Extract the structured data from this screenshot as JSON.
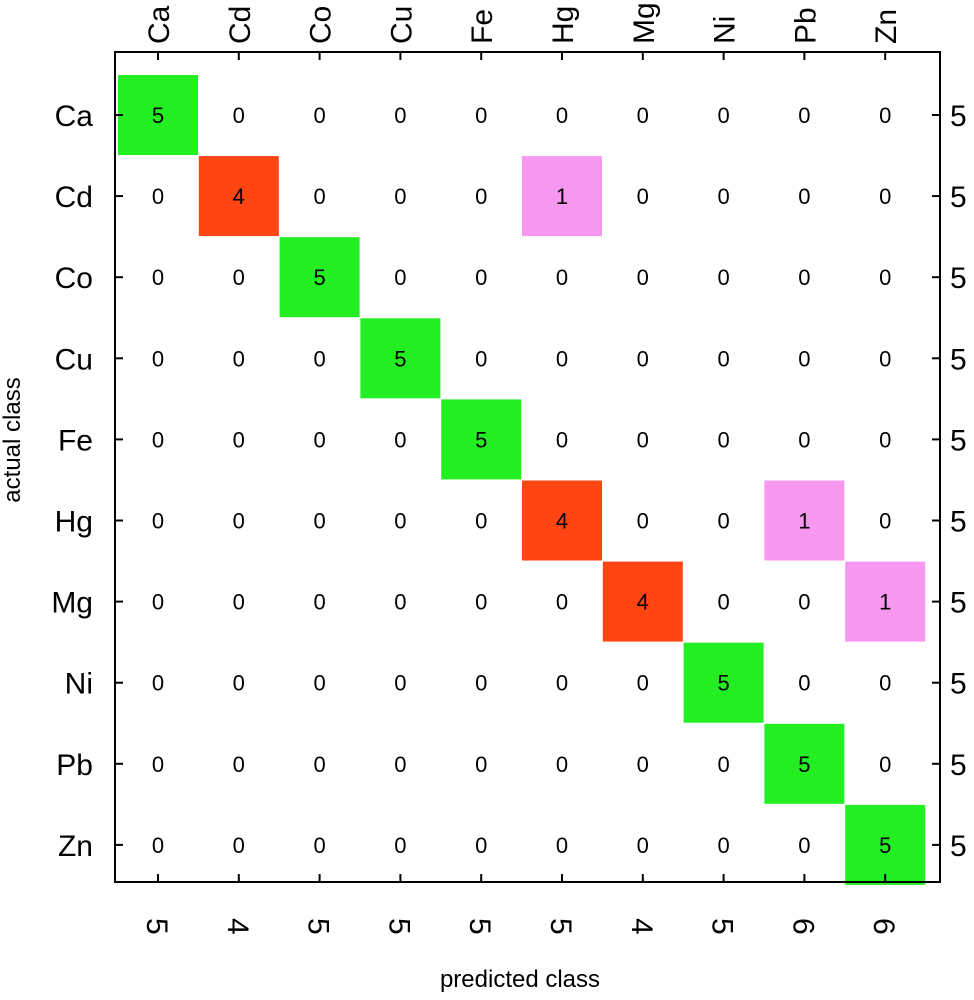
{
  "chart_data": {
    "type": "heatmap",
    "title": "",
    "xlabel": "predicted class",
    "ylabel": "actual class",
    "classes": [
      "Ca",
      "Cd",
      "Co",
      "Cu",
      "Fe",
      "Hg",
      "Mg",
      "Ni",
      "Pb",
      "Zn"
    ],
    "matrix": [
      [
        5,
        0,
        0,
        0,
        0,
        0,
        0,
        0,
        0,
        0
      ],
      [
        0,
        4,
        0,
        0,
        0,
        1,
        0,
        0,
        0,
        0
      ],
      [
        0,
        0,
        5,
        0,
        0,
        0,
        0,
        0,
        0,
        0
      ],
      [
        0,
        0,
        0,
        5,
        0,
        0,
        0,
        0,
        0,
        0
      ],
      [
        0,
        0,
        0,
        0,
        5,
        0,
        0,
        0,
        0,
        0
      ],
      [
        0,
        0,
        0,
        0,
        0,
        4,
        0,
        0,
        1,
        0
      ],
      [
        0,
        0,
        0,
        0,
        0,
        0,
        4,
        0,
        0,
        1
      ],
      [
        0,
        0,
        0,
        0,
        0,
        0,
        0,
        5,
        0,
        0
      ],
      [
        0,
        0,
        0,
        0,
        0,
        0,
        0,
        0,
        5,
        0
      ],
      [
        0,
        0,
        0,
        0,
        0,
        0,
        0,
        0,
        0,
        5
      ]
    ],
    "row_totals": [
      5,
      5,
      5,
      5,
      5,
      5,
      5,
      5,
      5,
      5
    ],
    "column_totals": [
      5,
      4,
      5,
      5,
      5,
      5,
      4,
      5,
      6,
      6
    ],
    "colors": {
      "correct_full": "#22ee22",
      "correct_partial": "#ff4511",
      "misclassified": "#f797f0"
    }
  }
}
